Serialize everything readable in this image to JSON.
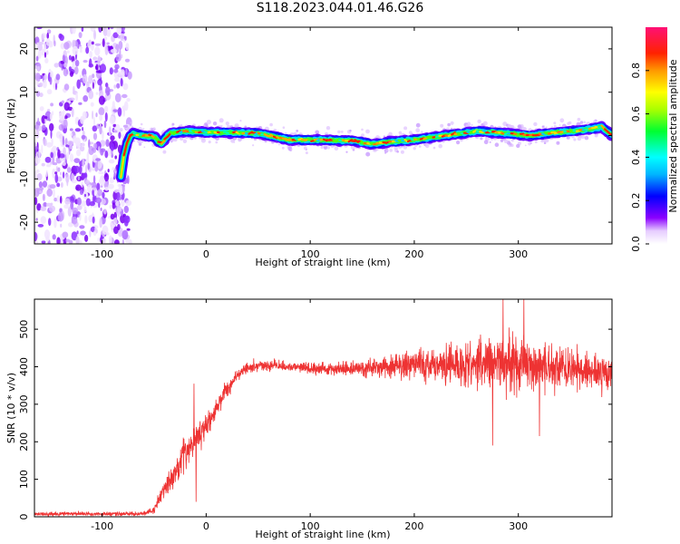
{
  "figure": {
    "title": "S118.2023.044.01.46.G26"
  },
  "colors": {
    "snr_line": "#ee3333",
    "axis": "#000000"
  },
  "chart_data": [
    {
      "type": "heatmap",
      "name": "spectrogram",
      "xlabel": "Height of straight line (km)",
      "ylabel": "Frequency (Hz)",
      "xlim": [
        -165,
        390
      ],
      "ylim": [
        -25,
        25
      ],
      "xticks": [
        -100,
        0,
        100,
        200,
        300
      ],
      "xtick_labels": [
        "-100",
        "0",
        "100",
        "200",
        "300"
      ],
      "yticks": [
        -20,
        -10,
        0,
        10,
        20
      ],
      "ytick_labels": [
        "-20",
        "-10",
        "0",
        "10",
        "20"
      ],
      "noise_region_x": [
        -165,
        -80
      ],
      "ridge": {
        "x": [
          -82,
          -78,
          -72,
          -60,
          -50,
          -44,
          -35,
          -20,
          0,
          50,
          80,
          100,
          140,
          150,
          160,
          175,
          200,
          230,
          260,
          290,
          310,
          340,
          360,
          380,
          390
        ],
        "freq": [
          -9.5,
          -3,
          0.5,
          0,
          -0.2,
          -2,
          0.5,
          1,
          0.8,
          0.5,
          -1,
          -1,
          -1.2,
          -1.5,
          -2,
          -1.5,
          -1,
          0,
          1,
          0.5,
          0,
          0.8,
          1.2,
          2,
          0
        ]
      },
      "colorbar": {
        "label": "Normalized spectral amplitude",
        "range": [
          0.0,
          1.0
        ],
        "ticks": [
          0.0,
          0.2,
          0.4,
          0.6,
          0.8
        ],
        "tick_labels": [
          "0.0",
          "0.2",
          "0.4",
          "0.6",
          "0.8"
        ]
      }
    },
    {
      "type": "line",
      "name": "snr",
      "xlabel": "Height of straight line (km)",
      "ylabel": "SNR (10 * v/v)",
      "xlim": [
        -165,
        390
      ],
      "ylim": [
        0,
        580
      ],
      "xticks": [
        -100,
        0,
        100,
        200,
        300
      ],
      "xtick_labels": [
        "-100",
        "0",
        "100",
        "200",
        "300"
      ],
      "yticks": [
        0,
        100,
        200,
        300,
        400,
        500
      ],
      "ytick_labels": [
        "0",
        "100",
        "200",
        "300",
        "400",
        "500"
      ],
      "envelope": {
        "x": [
          -165,
          -60,
          -50,
          -40,
          -30,
          -20,
          -10,
          0,
          10,
          20,
          30,
          40,
          60,
          100,
          150,
          200,
          250,
          300,
          350,
          390
        ],
        "snr": [
          8,
          8,
          18,
          75,
          120,
          170,
          210,
          240,
          290,
          340,
          380,
          400,
          405,
          395,
          395,
          405,
          410,
          410,
          395,
          385
        ],
        "spread": [
          6,
          6,
          12,
          30,
          40,
          50,
          40,
          35,
          30,
          25,
          20,
          15,
          15,
          15,
          22,
          45,
          65,
          80,
          60,
          45
        ]
      },
      "spikes": [
        {
          "x": -12,
          "snr": 355
        },
        {
          "x": -10,
          "snr": 40
        },
        {
          "x": 285,
          "snr": 580
        },
        {
          "x": 305,
          "snr": 580
        },
        {
          "x": 275,
          "snr": 190
        },
        {
          "x": 320,
          "snr": 215
        }
      ]
    }
  ]
}
